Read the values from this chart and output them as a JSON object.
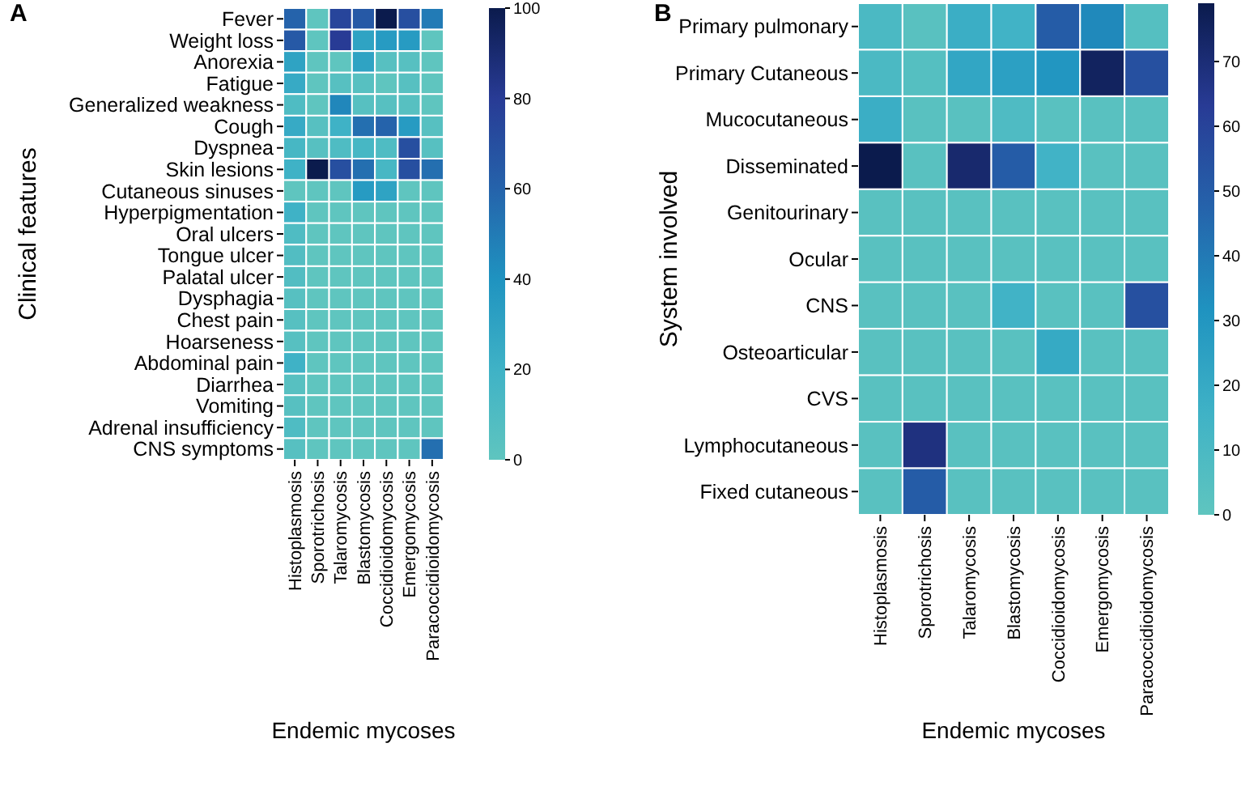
{
  "chart_data": [
    {
      "type": "heatmap",
      "title": "A",
      "xlabel": "Endemic mycoses",
      "ylabel": "Clinical features",
      "categories": [
        "Histoplasmosis",
        "Sporotrichosis",
        "Talaromycosis",
        "Blastomycosis",
        "Coccidioidomycosis",
        "Emergomycosis",
        "Paracoccidioidomycosis"
      ],
      "y_categories": [
        "Fever",
        "Weight loss",
        "Anorexia",
        "Fatigue",
        "Generalized weakness",
        "Cough",
        "Dyspnea",
        "Skin lesions",
        "Cutaneous sinuses",
        "Hyperpigmentation",
        "Oral ulcers",
        "Tongue ulcer",
        "Palatal ulcer",
        "Dysphagia",
        "Chest pain",
        "Hoarseness",
        "Abdominal pain",
        "Diarrhea",
        "Vomiting",
        "Adrenal insufficiency",
        "CNS symptoms"
      ],
      "cells": [
        [
          60,
          0,
          75,
          65,
          100,
          70,
          50
        ],
        [
          65,
          0,
          80,
          30,
          35,
          35,
          0
        ],
        [
          30,
          0,
          0,
          30,
          5,
          5,
          0
        ],
        [
          25,
          0,
          5,
          5,
          0,
          5,
          0
        ],
        [
          10,
          0,
          45,
          5,
          5,
          5,
          0
        ],
        [
          25,
          5,
          20,
          55,
          60,
          35,
          5
        ],
        [
          15,
          5,
          10,
          15,
          10,
          70,
          5
        ],
        [
          20,
          100,
          70,
          55,
          15,
          70,
          55
        ],
        [
          0,
          0,
          0,
          35,
          30,
          0,
          0
        ],
        [
          20,
          0,
          0,
          0,
          0,
          0,
          0
        ],
        [
          10,
          0,
          0,
          0,
          0,
          0,
          0
        ],
        [
          8,
          0,
          0,
          0,
          0,
          0,
          0
        ],
        [
          8,
          0,
          0,
          0,
          0,
          0,
          0
        ],
        [
          5,
          0,
          0,
          0,
          0,
          0,
          0
        ],
        [
          5,
          0,
          0,
          0,
          0,
          0,
          0
        ],
        [
          5,
          0,
          0,
          0,
          0,
          0,
          0
        ],
        [
          20,
          0,
          0,
          0,
          0,
          0,
          0
        ],
        [
          5,
          0,
          0,
          0,
          0,
          0,
          0
        ],
        [
          5,
          0,
          0,
          0,
          0,
          0,
          0
        ],
        [
          10,
          0,
          0,
          0,
          0,
          0,
          0
        ],
        [
          5,
          0,
          0,
          0,
          0,
          0,
          55
        ]
      ],
      "clim": [
        0,
        100
      ],
      "cticks": [
        0,
        20,
        40,
        60,
        80,
        100
      ]
    },
    {
      "type": "heatmap",
      "title": "B",
      "xlabel": "Endemic mycoses",
      "ylabel": "System involved",
      "categories": [
        "Histoplasmosis",
        "Sporotrichosis",
        "Talaromycosis",
        "Blastomycosis",
        "Coccidioidomycosis",
        "Emergomycosis",
        "Paracoccidioidomycosis"
      ],
      "y_categories": [
        "Primary pulmonary",
        "Primary Cutaneous",
        "Mucocutaneous",
        "Disseminated",
        "Genitourinary",
        "Ocular",
        "CNS",
        "Osteoarticular",
        "CVS",
        "Lymphocutaneous",
        "Fixed cutaneous"
      ],
      "cells": [
        [
          10,
          3,
          18,
          15,
          50,
          35,
          5
        ],
        [
          10,
          5,
          22,
          25,
          30,
          75,
          55
        ],
        [
          18,
          3,
          3,
          8,
          3,
          3,
          3
        ],
        [
          79,
          3,
          72,
          50,
          15,
          3,
          3
        ],
        [
          3,
          3,
          3,
          3,
          3,
          3,
          3
        ],
        [
          3,
          3,
          3,
          3,
          3,
          3,
          3
        ],
        [
          3,
          3,
          3,
          15,
          3,
          3,
          55
        ],
        [
          3,
          3,
          3,
          3,
          20,
          3,
          3
        ],
        [
          3,
          3,
          3,
          3,
          3,
          3,
          3
        ],
        [
          3,
          68,
          3,
          3,
          3,
          3,
          3
        ],
        [
          3,
          50,
          3,
          3,
          3,
          3,
          3
        ]
      ],
      "clim": [
        0,
        79
      ],
      "cticks": [
        0,
        10,
        20,
        30,
        40,
        50,
        60,
        70
      ]
    }
  ]
}
